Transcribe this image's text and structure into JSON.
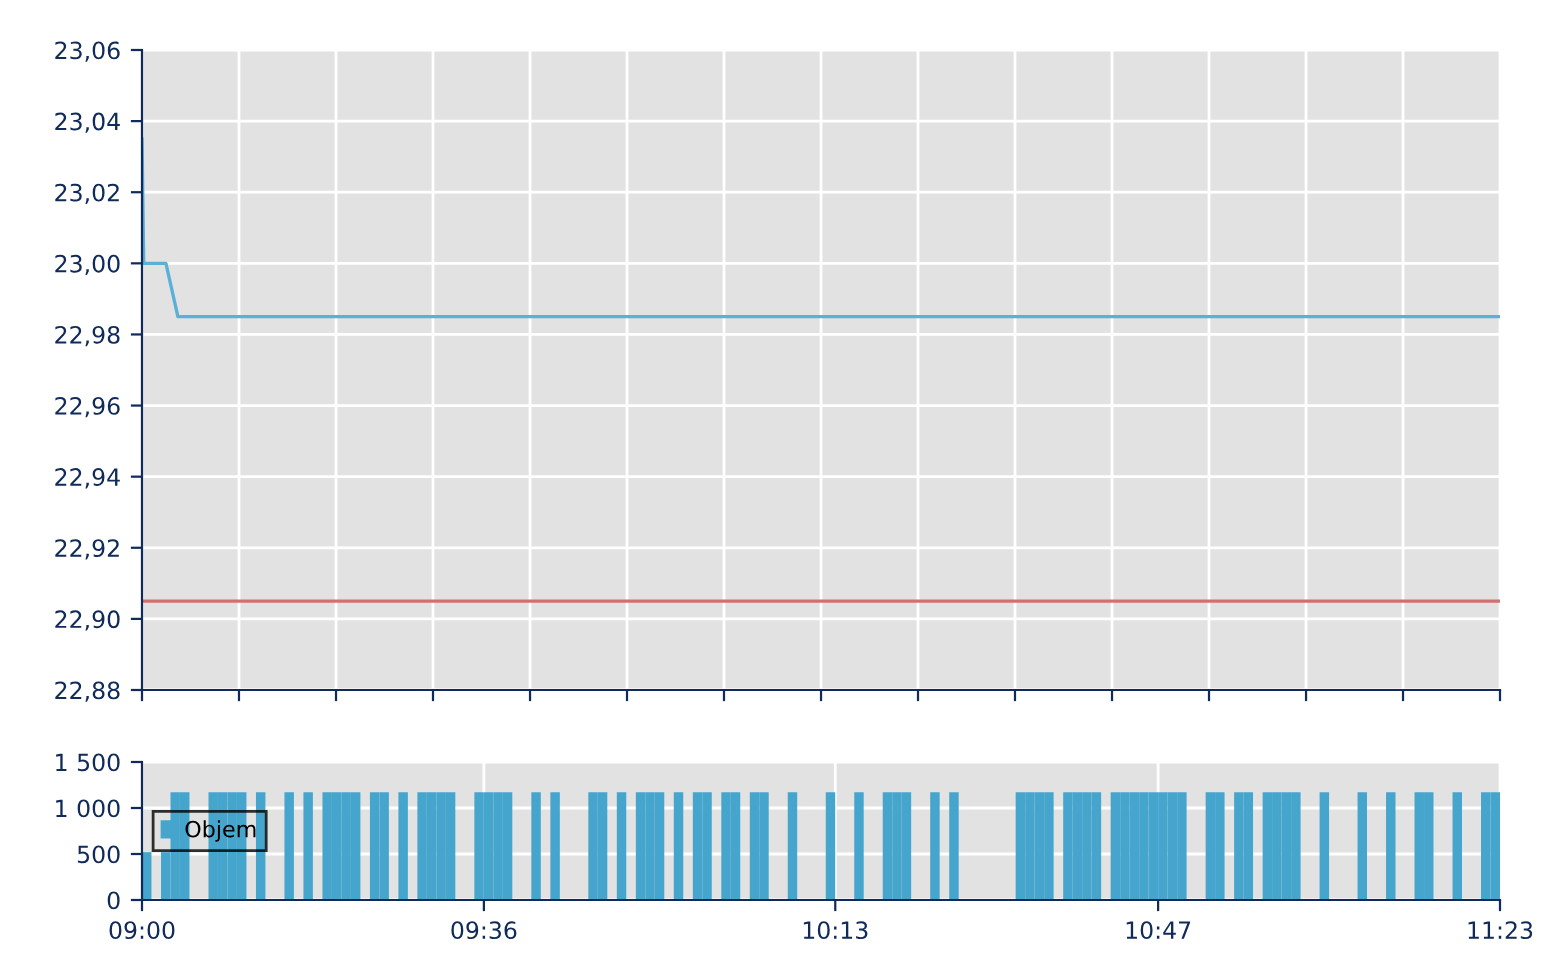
{
  "chart_data": [
    {
      "type": "line",
      "tick_labels": "y",
      "grid": true,
      "legend": false,
      "series": [
        {
          "color": "#5ab0d6",
          "x": [
            9,
            9.003,
            9.042,
            9.063,
            11.3833
          ],
          "values": [
            23.035,
            23.0,
            23.0,
            22.985,
            22.985
          ]
        }
      ],
      "ref_lines": [
        {
          "axis": "y",
          "value": 22.905,
          "color": "#d07070"
        }
      ],
      "xlim": [
        9,
        11.3833
      ],
      "xticks": [
        {
          "value": 9,
          "label": null
        },
        {
          "value": 9.1702,
          "label": null
        },
        {
          "value": 9.3405,
          "label": null
        },
        {
          "value": 9.5107,
          "label": null
        },
        {
          "value": 9.681,
          "label": null
        },
        {
          "value": 9.8512,
          "label": null
        },
        {
          "value": 10.0214,
          "label": null
        },
        {
          "value": 10.1917,
          "label": null
        },
        {
          "value": 10.3619,
          "label": null
        },
        {
          "value": 10.5321,
          "label": null
        },
        {
          "value": 10.7024,
          "label": null
        },
        {
          "value": 10.8726,
          "label": null
        },
        {
          "value": 11.0429,
          "label": null
        },
        {
          "value": 11.2131,
          "label": null
        },
        {
          "value": 11.3833,
          "label": null
        }
      ],
      "ylim": [
        22.88,
        23.06
      ],
      "yticks": [
        {
          "value": 22.88,
          "label": "22,88"
        },
        {
          "value": 22.9,
          "label": "22,90"
        },
        {
          "value": 22.92,
          "label": "22,92"
        },
        {
          "value": 22.94,
          "label": "22,94"
        },
        {
          "value": 22.96,
          "label": "22,96"
        },
        {
          "value": 22.98,
          "label": "22,98"
        },
        {
          "value": 23.0,
          "label": "23,00"
        },
        {
          "value": 23.02,
          "label": "23,02"
        },
        {
          "value": 23.04,
          "label": "23,04"
        },
        {
          "value": 23.06,
          "label": "23,06"
        }
      ]
    },
    {
      "type": "bar",
      "grid": true,
      "legend": "center left",
      "series": [
        {
          "name": "Objem",
          "color": "#45a5cc",
          "x": [
            9,
            9.0333,
            9.05,
            9.0667,
            9.1167,
            9.1333,
            9.15,
            9.1667,
            9.2,
            9.25,
            9.2833,
            9.3167,
            9.3333,
            9.35,
            9.3667,
            9.4,
            9.4167,
            9.45,
            9.4833,
            9.5,
            9.5167,
            9.5333,
            9.5833,
            9.6,
            9.6167,
            9.6333,
            9.6833,
            9.7167,
            9.7833,
            9.8,
            9.8333,
            9.8667,
            9.8833,
            9.9,
            9.9333,
            9.9667,
            9.9833,
            10.0167,
            10.0333,
            10.0667,
            10.0833,
            10.1333,
            10.2,
            10.25,
            10.3,
            10.3167,
            10.3333,
            10.3833,
            10.4167,
            10.5333,
            10.55,
            10.5667,
            10.5833,
            10.6167,
            10.6333,
            10.65,
            10.6667,
            10.7,
            10.7167,
            10.7333,
            10.75,
            10.7667,
            10.7833,
            10.8,
            10.8167,
            10.8667,
            10.8833,
            10.9167,
            10.9333,
            10.9667,
            10.9833,
            11.0,
            11.0167,
            11.0667,
            11.1333,
            11.1833,
            11.2333,
            11.25,
            11.3,
            11.35,
            11.3667
          ],
          "values": [
            520,
            520,
            1170,
            1170,
            1170,
            1170,
            1170,
            1170,
            1170,
            1170,
            1170,
            1170,
            1170,
            1170,
            1170,
            1170,
            1170,
            1170,
            1170,
            1170,
            1170,
            1170,
            1170,
            1170,
            1170,
            1170,
            1170,
            1170,
            1170,
            1170,
            1170,
            1170,
            1170,
            1170,
            1170,
            1170,
            1170,
            1170,
            1170,
            1170,
            1170,
            1170,
            1170,
            1170,
            1170,
            1170,
            1170,
            1170,
            1170,
            1170,
            1170,
            1170,
            1170,
            1170,
            1170,
            1170,
            1170,
            1170,
            1170,
            1170,
            1170,
            1170,
            1170,
            1170,
            1170,
            1170,
            1170,
            1170,
            1170,
            1170,
            1170,
            1170,
            1170,
            1170,
            1170,
            1170,
            1170,
            1170,
            1170,
            1170,
            1170
          ]
        }
      ],
      "xlim": [
        9,
        11.3833
      ],
      "xticks": [
        {
          "value": 9,
          "label": "09:00"
        },
        {
          "value": 9.6,
          "label": "09:36"
        },
        {
          "value": 10.2167,
          "label": "10:13"
        },
        {
          "value": 10.7833,
          "label": "10:47"
        },
        {
          "value": 11.3833,
          "label": "11:23"
        }
      ],
      "ylim": [
        0,
        1500
      ],
      "yticks": [
        {
          "value": 0,
          "label": "0"
        },
        {
          "value": 500,
          "label": "500"
        },
        {
          "value": 1000,
          "label": "1 000"
        },
        {
          "value": 1500,
          "label": "1 500"
        }
      ]
    }
  ]
}
